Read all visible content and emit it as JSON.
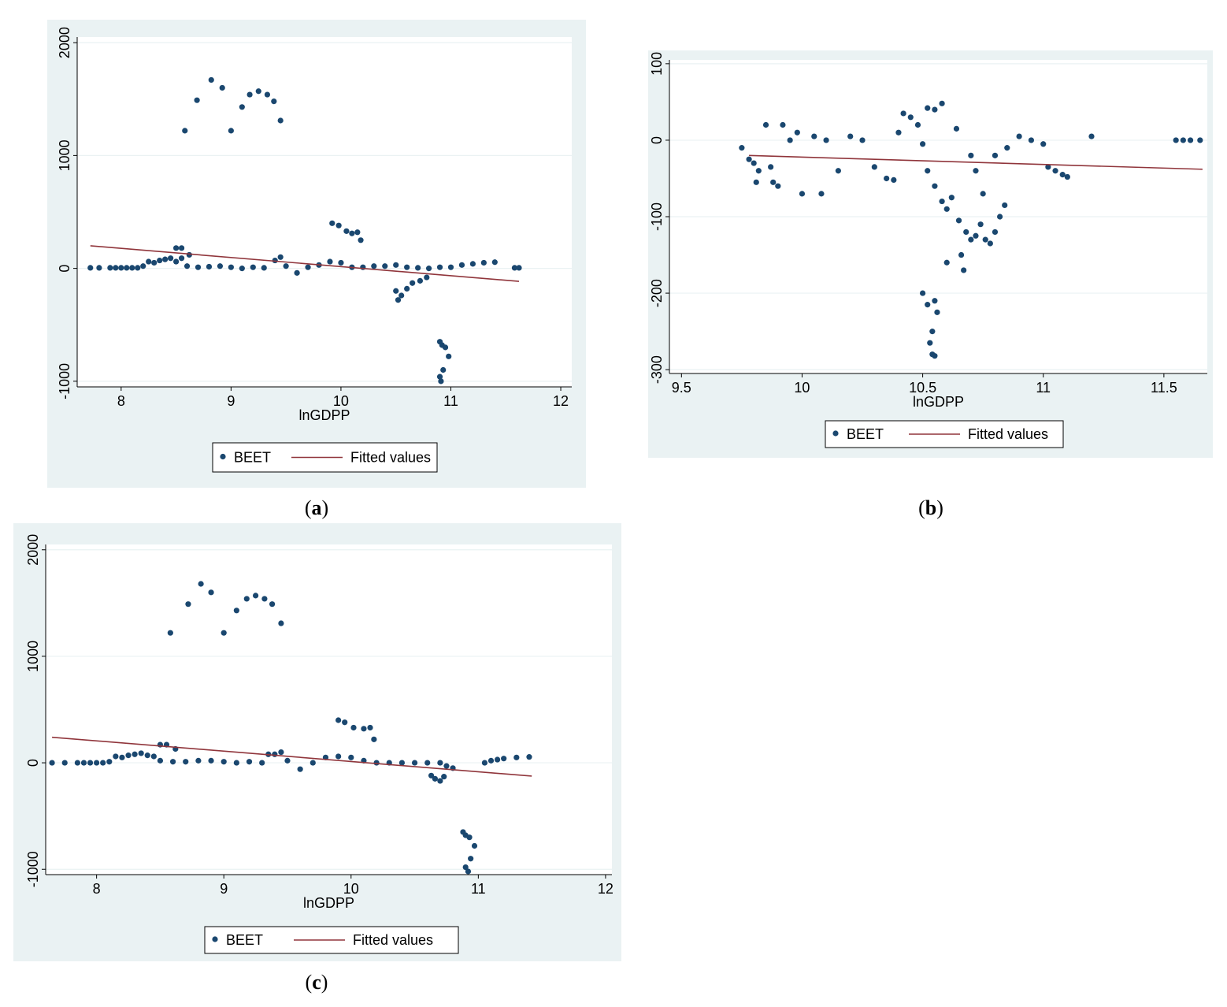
{
  "colors": {
    "background": "#eaf2f3",
    "plot_area": "#ffffff",
    "grid": "#eaf2f3",
    "points": "#1a476f",
    "fit_line": "#90353b"
  },
  "captions": [
    "a",
    "b",
    "c"
  ],
  "chart_data": [
    {
      "type": "scatter",
      "panel": "a",
      "xlabel": "lnGDPP",
      "ylabel": "",
      "xlim": [
        7.6,
        12.1
      ],
      "ylim": [
        -1050,
        2050
      ],
      "xticks": [
        8,
        9,
        10,
        11,
        12
      ],
      "yticks": [
        -1000,
        0,
        1000,
        2000
      ],
      "grid": true,
      "legend": [
        "BEET",
        "Fitted values"
      ],
      "legend_position": "bottom-center",
      "series": [
        {
          "name": "BEET",
          "kind": "points",
          "points": [
            [
              7.72,
              5
            ],
            [
              7.8,
              5
            ],
            [
              7.9,
              5
            ],
            [
              7.95,
              5
            ],
            [
              8.0,
              5
            ],
            [
              8.05,
              5
            ],
            [
              8.1,
              5
            ],
            [
              8.15,
              5
            ],
            [
              8.2,
              20
            ],
            [
              8.25,
              60
            ],
            [
              8.3,
              50
            ],
            [
              8.35,
              70
            ],
            [
              8.4,
              80
            ],
            [
              8.45,
              90
            ],
            [
              8.5,
              60
            ],
            [
              8.55,
              90
            ],
            [
              8.6,
              20
            ],
            [
              8.7,
              10
            ],
            [
              8.8,
              15
            ],
            [
              8.9,
              20
            ],
            [
              9.0,
              10
            ],
            [
              9.1,
              0
            ],
            [
              9.2,
              10
            ],
            [
              9.3,
              5
            ],
            [
              9.4,
              70
            ],
            [
              9.45,
              100
            ],
            [
              9.5,
              20
            ],
            [
              9.6,
              -40
            ],
            [
              9.7,
              10
            ],
            [
              9.8,
              30
            ],
            [
              9.9,
              60
            ],
            [
              10.0,
              50
            ],
            [
              10.1,
              10
            ],
            [
              10.2,
              10
            ],
            [
              10.3,
              20
            ],
            [
              10.4,
              20
            ],
            [
              10.5,
              30
            ],
            [
              10.6,
              10
            ],
            [
              10.7,
              5
            ],
            [
              10.8,
              0
            ],
            [
              10.9,
              10
            ],
            [
              11.0,
              10
            ],
            [
              11.1,
              30
            ],
            [
              11.2,
              40
            ],
            [
              11.3,
              50
            ],
            [
              11.4,
              55
            ],
            [
              11.58,
              5
            ],
            [
              11.62,
              5
            ],
            [
              8.58,
              1220
            ],
            [
              8.69,
              1490
            ],
            [
              8.82,
              1670
            ],
            [
              8.92,
              1600
            ],
            [
              9.0,
              1220
            ],
            [
              9.1,
              1430
            ],
            [
              9.17,
              1540
            ],
            [
              9.25,
              1570
            ],
            [
              9.33,
              1540
            ],
            [
              9.39,
              1480
            ],
            [
              9.45,
              1310
            ],
            [
              8.5,
              180
            ],
            [
              8.55,
              180
            ],
            [
              8.62,
              120
            ],
            [
              9.92,
              400
            ],
            [
              9.98,
              380
            ],
            [
              10.05,
              330
            ],
            [
              10.1,
              310
            ],
            [
              10.15,
              320
            ],
            [
              10.18,
              250
            ],
            [
              10.5,
              -200
            ],
            [
              10.52,
              -280
            ],
            [
              10.55,
              -240
            ],
            [
              10.6,
              -180
            ],
            [
              10.65,
              -130
            ],
            [
              10.72,
              -110
            ],
            [
              10.78,
              -80
            ],
            [
              10.9,
              -650
            ],
            [
              10.92,
              -680
            ],
            [
              10.95,
              -700
            ],
            [
              10.98,
              -780
            ],
            [
              10.9,
              -960
            ],
            [
              10.91,
              -1000
            ],
            [
              10.93,
              -900
            ]
          ]
        },
        {
          "name": "Fitted values",
          "kind": "line",
          "points": [
            [
              7.72,
              200
            ],
            [
              11.62,
              -115
            ]
          ]
        }
      ]
    },
    {
      "type": "scatter",
      "panel": "b",
      "xlabel": "lnGDPP",
      "ylabel": "",
      "xlim": [
        9.45,
        11.68
      ],
      "ylim": [
        -305,
        105
      ],
      "xticks": [
        9.5,
        10,
        10.5,
        11,
        11.5
      ],
      "yticks": [
        -300,
        -200,
        -100,
        0,
        100
      ],
      "grid": true,
      "legend": [
        "BEET",
        "Fitted values"
      ],
      "legend_position": "bottom-center",
      "series": [
        {
          "name": "BEET",
          "kind": "points",
          "points": [
            [
              9.75,
              -10
            ],
            [
              9.78,
              -25
            ],
            [
              9.8,
              -30
            ],
            [
              9.82,
              -40
            ],
            [
              9.81,
              -55
            ],
            [
              9.85,
              20
            ],
            [
              9.87,
              -35
            ],
            [
              9.88,
              -55
            ],
            [
              9.9,
              -60
            ],
            [
              9.92,
              20
            ],
            [
              9.95,
              0
            ],
            [
              9.98,
              10
            ],
            [
              10.0,
              -70
            ],
            [
              10.05,
              5
            ],
            [
              10.08,
              -70
            ],
            [
              10.1,
              0
            ],
            [
              10.15,
              -40
            ],
            [
              10.2,
              5
            ],
            [
              10.25,
              0
            ],
            [
              10.3,
              -35
            ],
            [
              10.35,
              -50
            ],
            [
              10.38,
              -52
            ],
            [
              10.4,
              10
            ],
            [
              10.42,
              35
            ],
            [
              10.45,
              30
            ],
            [
              10.48,
              20
            ],
            [
              10.5,
              -5
            ],
            [
              10.52,
              42
            ],
            [
              10.55,
              40
            ],
            [
              10.58,
              48
            ],
            [
              10.52,
              -40
            ],
            [
              10.55,
              -60
            ],
            [
              10.58,
              -80
            ],
            [
              10.6,
              -90
            ],
            [
              10.62,
              -75
            ],
            [
              10.64,
              15
            ],
            [
              10.65,
              -105
            ],
            [
              10.68,
              -120
            ],
            [
              10.7,
              -130
            ],
            [
              10.72,
              -125
            ],
            [
              10.74,
              -110
            ],
            [
              10.76,
              -130
            ],
            [
              10.78,
              -135
            ],
            [
              10.8,
              -120
            ],
            [
              10.82,
              -100
            ],
            [
              10.84,
              -85
            ],
            [
              10.66,
              -150
            ],
            [
              10.67,
              -170
            ],
            [
              10.6,
              -160
            ],
            [
              10.5,
              -200
            ],
            [
              10.52,
              -215
            ],
            [
              10.55,
              -210
            ],
            [
              10.56,
              -225
            ],
            [
              10.54,
              -250
            ],
            [
              10.53,
              -265
            ],
            [
              10.54,
              -280
            ],
            [
              10.55,
              -282
            ],
            [
              10.7,
              -20
            ],
            [
              10.72,
              -40
            ],
            [
              10.75,
              -70
            ],
            [
              10.8,
              -20
            ],
            [
              10.85,
              -10
            ],
            [
              10.9,
              5
            ],
            [
              10.95,
              0
            ],
            [
              11.0,
              -5
            ],
            [
              11.02,
              -35
            ],
            [
              11.05,
              -40
            ],
            [
              11.08,
              -45
            ],
            [
              11.1,
              -48
            ],
            [
              11.2,
              5
            ],
            [
              11.55,
              0
            ],
            [
              11.58,
              0
            ],
            [
              11.61,
              0
            ],
            [
              11.65,
              0
            ]
          ]
        },
        {
          "name": "Fitted values",
          "kind": "line",
          "points": [
            [
              9.78,
              -20
            ],
            [
              11.66,
              -38
            ]
          ]
        }
      ]
    },
    {
      "type": "scatter",
      "panel": "c",
      "xlabel": "lnGDPP",
      "ylabel": "",
      "xlim": [
        7.6,
        12.05
      ],
      "ylim": [
        -1050,
        2050
      ],
      "xticks": [
        8,
        9,
        10,
        11,
        12
      ],
      "yticks": [
        -1000,
        0,
        1000,
        2000
      ],
      "grid": true,
      "legend": [
        "BEET",
        "Fitted values"
      ],
      "legend_position": "bottom-center",
      "series": [
        {
          "name": "BEET",
          "kind": "points",
          "points": [
            [
              7.65,
              0
            ],
            [
              7.75,
              0
            ],
            [
              7.85,
              0
            ],
            [
              7.9,
              0
            ],
            [
              7.95,
              0
            ],
            [
              8.0,
              0
            ],
            [
              8.05,
              0
            ],
            [
              8.1,
              10
            ],
            [
              8.15,
              60
            ],
            [
              8.2,
              50
            ],
            [
              8.25,
              70
            ],
            [
              8.3,
              80
            ],
            [
              8.35,
              90
            ],
            [
              8.4,
              70
            ],
            [
              8.45,
              60
            ],
            [
              8.5,
              20
            ],
            [
              8.6,
              10
            ],
            [
              8.7,
              10
            ],
            [
              8.8,
              20
            ],
            [
              8.9,
              20
            ],
            [
              9.0,
              10
            ],
            [
              9.1,
              0
            ],
            [
              9.2,
              10
            ],
            [
              9.3,
              0
            ],
            [
              9.35,
              80
            ],
            [
              9.4,
              80
            ],
            [
              9.45,
              100
            ],
            [
              9.5,
              20
            ],
            [
              9.6,
              -60
            ],
            [
              9.7,
              0
            ],
            [
              9.8,
              50
            ],
            [
              9.9,
              60
            ],
            [
              10.0,
              50
            ],
            [
              10.1,
              20
            ],
            [
              10.2,
              0
            ],
            [
              10.3,
              0
            ],
            [
              10.4,
              0
            ],
            [
              10.5,
              0
            ],
            [
              10.6,
              0
            ],
            [
              10.7,
              0
            ],
            [
              10.75,
              -30
            ],
            [
              10.8,
              -50
            ],
            [
              11.05,
              0
            ],
            [
              11.1,
              20
            ],
            [
              11.15,
              30
            ],
            [
              11.2,
              40
            ],
            [
              11.3,
              50
            ],
            [
              11.4,
              55
            ],
            [
              8.58,
              1220
            ],
            [
              8.72,
              1490
            ],
            [
              8.82,
              1680
            ],
            [
              8.9,
              1600
            ],
            [
              9.0,
              1220
            ],
            [
              9.1,
              1430
            ],
            [
              9.18,
              1540
            ],
            [
              9.25,
              1570
            ],
            [
              9.32,
              1540
            ],
            [
              9.38,
              1490
            ],
            [
              9.45,
              1310
            ],
            [
              8.5,
              170
            ],
            [
              8.55,
              170
            ],
            [
              8.62,
              130
            ],
            [
              9.9,
              400
            ],
            [
              9.95,
              380
            ],
            [
              10.02,
              330
            ],
            [
              10.1,
              320
            ],
            [
              10.15,
              330
            ],
            [
              10.18,
              220
            ],
            [
              10.63,
              -120
            ],
            [
              10.66,
              -150
            ],
            [
              10.7,
              -170
            ],
            [
              10.73,
              -130
            ],
            [
              10.88,
              -650
            ],
            [
              10.9,
              -680
            ],
            [
              10.93,
              -700
            ],
            [
              10.97,
              -780
            ],
            [
              10.9,
              -980
            ],
            [
              10.92,
              -1020
            ],
            [
              10.94,
              -900
            ]
          ]
        },
        {
          "name": "Fitted values",
          "kind": "line",
          "points": [
            [
              7.65,
              240
            ],
            [
              11.42,
              -125
            ]
          ]
        }
      ]
    }
  ]
}
